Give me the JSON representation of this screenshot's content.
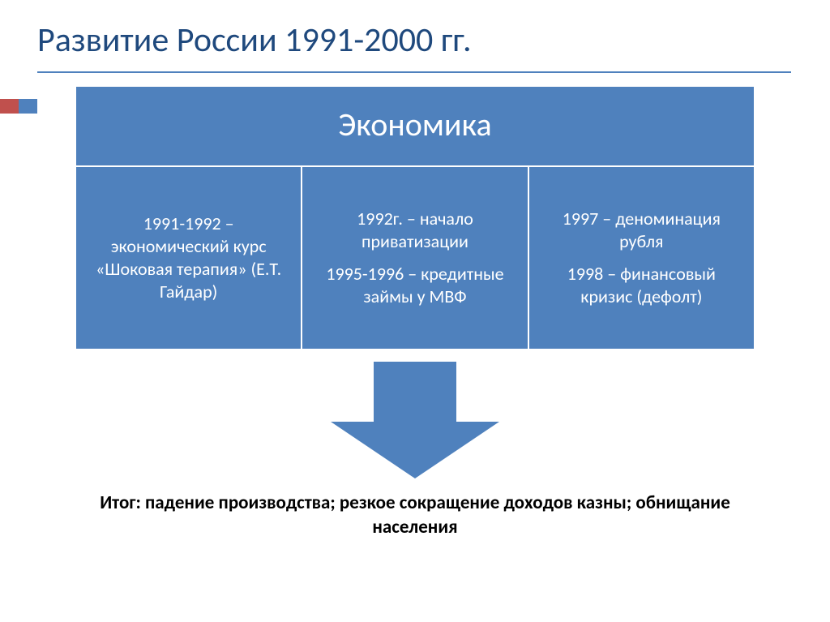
{
  "title": "Развитие России 1991-2000 гг.",
  "colors": {
    "title_color": "#1f497d",
    "box_fill": "#4f81bd",
    "box_text": "#ffffff",
    "box_border": "#ffffff",
    "accent_red": "#c0504d",
    "accent_blue": "#4f81bd",
    "rule_color": "#4f81bd",
    "result_color": "#000000",
    "background": "#ffffff"
  },
  "typography": {
    "title_fontsize": 42,
    "header_fontsize": 40,
    "cell_fontsize": 22,
    "result_fontsize": 23,
    "result_weight": "bold"
  },
  "diagram": {
    "type": "infographic",
    "header": "Экономика",
    "cells": [
      {
        "lines": [
          "1991-1992 – экономический курс «Шоковая терапия» (Е.Т. Гайдар)"
        ]
      },
      {
        "lines": [
          "1992г. – начало приватизации",
          "1995-1996 – кредитные займы у МВФ"
        ]
      },
      {
        "lines": [
          "1997 – деноминация рубля",
          "1998 – финансовый кризис (дефолт)"
        ]
      }
    ],
    "arrow_color": "#4f81bd"
  },
  "result": "Итог: падение производства; резкое сокращение доходов казны; обнищание населения"
}
